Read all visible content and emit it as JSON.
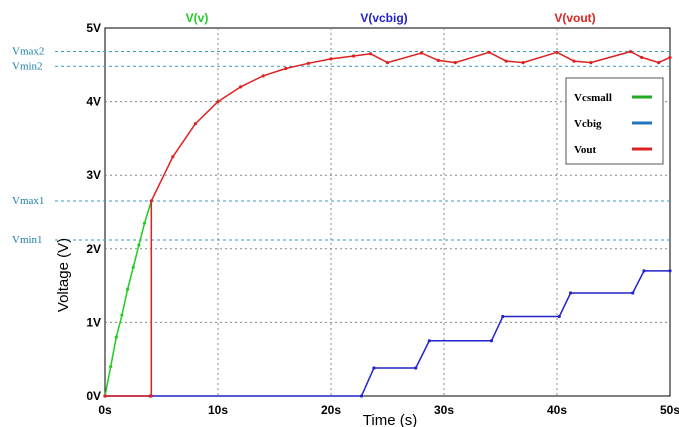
{
  "chart_data": {
    "type": "line",
    "title": "",
    "xlabel": "Time (s)",
    "ylabel": "Voltage (V)",
    "xlim": [
      0,
      50
    ],
    "ylim": [
      0,
      5
    ],
    "x_ticks": [
      "0s",
      "10s",
      "20s",
      "30s",
      "40s",
      "50s"
    ],
    "y_ticks": [
      "0V",
      "1V",
      "2V",
      "3V",
      "4V",
      "5V"
    ],
    "grid": true,
    "trace_headers": [
      {
        "label": "V(v)",
        "color": "#22cc22"
      },
      {
        "label": "V(vcbig)",
        "color": "#2222cc"
      },
      {
        "label": "V(vout)",
        "color": "#dd2222"
      }
    ],
    "reference_lines": [
      {
        "label": "Vmax2",
        "y": 4.68
      },
      {
        "label": "Vmin2",
        "y": 4.48
      },
      {
        "label": "Vmax1",
        "y": 2.65
      },
      {
        "label": "Vmin1",
        "y": 2.12
      }
    ],
    "legend": {
      "position": "right",
      "entries": [
        {
          "label": "Vcsmall",
          "color": "#22aa22"
        },
        {
          "label": "Vcbig",
          "color": "#2277bb"
        },
        {
          "label": "Vout",
          "color": "#dd2222"
        }
      ]
    },
    "series": [
      {
        "color": "#22cc22",
        "x": [
          0,
          0.5,
          1,
          1.5,
          2,
          2.5,
          3,
          3.5,
          4.1
        ],
        "y": [
          0,
          0.4,
          0.8,
          1.1,
          1.45,
          1.75,
          2.05,
          2.35,
          2.65
        ]
      },
      {
        "color": "#2222cc",
        "x": [
          0,
          4,
          22.7,
          23.8,
          27.5,
          28.7,
          34.2,
          35.2,
          40.2,
          41.2,
          46.7,
          47.7,
          50
        ],
        "y": [
          0,
          0,
          0,
          0.38,
          0.38,
          0.75,
          0.75,
          1.08,
          1.08,
          1.4,
          1.4,
          1.7,
          1.7
        ]
      },
      {
        "color": "#dd2222",
        "x": [
          0,
          4.1,
          4.1,
          6,
          8,
          10,
          12,
          14,
          16,
          18,
          20,
          22,
          23.5,
          25,
          28,
          29.5,
          31,
          34,
          35.5,
          37,
          40,
          41.5,
          43,
          46.5,
          47.5,
          49,
          50
        ],
        "y": [
          0,
          0,
          2.65,
          3.25,
          3.7,
          4.0,
          4.2,
          4.35,
          4.45,
          4.52,
          4.58,
          4.62,
          4.65,
          4.53,
          4.66,
          4.56,
          4.53,
          4.67,
          4.55,
          4.53,
          4.67,
          4.55,
          4.53,
          4.68,
          4.6,
          4.53,
          4.6
        ]
      }
    ]
  }
}
